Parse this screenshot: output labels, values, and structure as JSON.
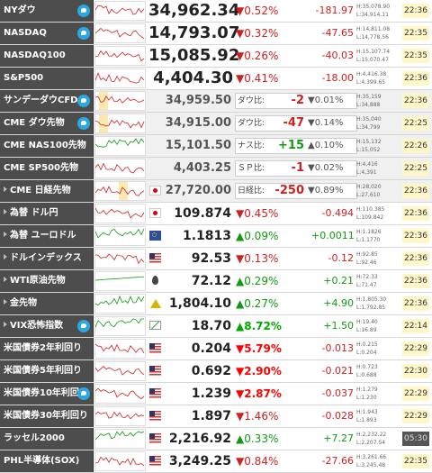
{
  "colors": {
    "down": "#d02020",
    "up": "#119911",
    "name_bg": "#4d4d4d",
    "time_bg": "#fff7c7"
  },
  "rows": [
    {
      "name": "NYダウ",
      "twitter": true,
      "flag": "",
      "price": "34,962.34",
      "pct": "▼0.52%",
      "diff": "-181.97",
      "dir": "down",
      "h": "H:35,078.90",
      "l": "L:34,914.11",
      "time": "22:36",
      "price_style": "big"
    },
    {
      "name": "NASDAQ",
      "twitter": true,
      "flag": "",
      "price": "14,793.07",
      "pct": "▼0.32%",
      "diff": "-47.65",
      "dir": "down",
      "h": "H:14,811.08",
      "l": "L:14,778.56",
      "time": "22:35",
      "price_style": "big"
    },
    {
      "name": "NASDAQ100",
      "twitter": false,
      "flag": "",
      "price": "15,085.92",
      "pct": "▼0.26%",
      "diff": "-40.03",
      "dir": "down",
      "h": "H:15,107.74",
      "l": "L:15,070.47",
      "time": "22:35",
      "price_style": "big"
    },
    {
      "name": "S&P500",
      "twitter": false,
      "flag": "",
      "price": "4,404.30",
      "pct": "▼0.41%",
      "diff": "-18.00",
      "dir": "down",
      "h": "H:4,416.38",
      "l": "L:4,399.65",
      "time": "22:36",
      "price_style": "big"
    },
    {
      "name": "サンデーダウCFD",
      "twitter": true,
      "flag": "",
      "price": "34,959.50",
      "cmp_label": "ダウ比:",
      "cmp_val": "-2",
      "cmp_pct": "▼0.01%",
      "dir": "down",
      "h": "H:35,159",
      "l": "L:34,888",
      "time": "22:36",
      "price_style": "mid"
    },
    {
      "name": "CME ダウ先物",
      "twitter": true,
      "flag": "",
      "price": "34,915.00",
      "cmp_label": "ダウ比:",
      "cmp_val": "-47",
      "cmp_pct": "▼0.14%",
      "dir": "down",
      "h": "H:35,040",
      "l": "L:34,799",
      "time": "22:25",
      "price_style": "mid"
    },
    {
      "name": "CME NAS100先物",
      "twitter": false,
      "flag": "",
      "price": "15,101.50",
      "cmp_label": "ナス比:",
      "cmp_val": "+15",
      "cmp_pct": "▲0.10%",
      "dir": "up",
      "h": "H:15,132",
      "l": "L:15,052",
      "time": "22:26",
      "price_style": "mid"
    },
    {
      "name": "CME SP500先物",
      "twitter": false,
      "flag": "",
      "price": "4,403.25",
      "cmp_label": "ＳＰ比:",
      "cmp_val": "-1",
      "cmp_pct": "▼0.02%",
      "dir": "down",
      "h": "H:4,416",
      "l": "L:4,391",
      "time": "22:25",
      "price_style": "mid"
    },
    {
      "name": "CME 日経先物",
      "twitter": false,
      "arrow": true,
      "flag": "jp",
      "price": "27,720.00",
      "cmp_label": "日経比:",
      "cmp_val": "-250",
      "cmp_pct": "▼0.89%",
      "dir": "down",
      "h": "H:28,020",
      "l": "L:27,610",
      "time": "22:36",
      "price_style": "mid"
    },
    {
      "name": "為替 ドル円",
      "twitter": false,
      "arrow": true,
      "flag": "jp",
      "price": "109.874",
      "pct": "▼0.45%",
      "diff": "-0.494",
      "dir": "down",
      "h": "H:110.385",
      "l": "L:109.842",
      "time": "22:36",
      "price_style": "norm"
    },
    {
      "name": "為替 ユーロドル",
      "twitter": false,
      "arrow": true,
      "flag": "eu",
      "price": "1.1813",
      "pct": "▲0.09%",
      "diff": "+0.0011",
      "dir": "up",
      "h": "H:1.1826",
      "l": "L:1.1770",
      "time": "22:36",
      "price_style": "norm"
    },
    {
      "name": "ドルインデックス",
      "twitter": false,
      "arrow": true,
      "flag": "us",
      "price": "92.53",
      "pct": "▼0.13%",
      "diff": "-0.12",
      "dir": "down",
      "h": "H:92.85",
      "l": "L:92.46",
      "time": "22:36",
      "price_style": "norm"
    },
    {
      "name": "WTI原油先物",
      "twitter": false,
      "arrow": true,
      "flag": "oil",
      "price": "72.12",
      "pct": "▲0.29%",
      "diff": "+0.21",
      "dir": "up",
      "h": "H:72.33",
      "l": "L:71.47",
      "time": "22:36",
      "price_style": "norm"
    },
    {
      "name": "金先物",
      "twitter": false,
      "arrow": true,
      "flag": "gold",
      "price": "1,804.10",
      "pct": "▲0.27%",
      "diff": "+4.90",
      "dir": "up",
      "h": "H:1,805.30",
      "l": "L:1,792.85",
      "time": "22:36",
      "price_style": "norm"
    },
    {
      "name": "VIX恐怖指数",
      "twitter": true,
      "arrow": true,
      "flag": "vix",
      "price": "18.70",
      "pct": "▲8.72%",
      "diff": "+1.50",
      "dir": "up",
      "pct_bright": true,
      "h": "H:19.40",
      "l": "L:16.89",
      "time": "22:14",
      "price_style": "norm"
    },
    {
      "name": "米国債券2年利回り",
      "twitter": false,
      "flag": "us",
      "price": "0.204",
      "pct": "▼5.79%",
      "diff": "-0.013",
      "dir": "down",
      "pct_bright": true,
      "h": "H:0.215",
      "l": "L:0.204",
      "time": "22:29",
      "price_style": "norm"
    },
    {
      "name": "米国債券5年利回り",
      "twitter": false,
      "flag": "us",
      "price": "0.692",
      "pct": "▼2.90%",
      "diff": "-0.021",
      "dir": "down",
      "pct_bright": true,
      "h": "H:0.723",
      "l": "L:0.688",
      "time": "22:30",
      "price_style": "norm"
    },
    {
      "name": "米国債券10年利回り",
      "twitter": true,
      "flag": "us",
      "price": "1.239",
      "pct": "▼2.87%",
      "diff": "-0.037",
      "dir": "down",
      "pct_bright": true,
      "h": "H:1.279",
      "l": "L:1.230",
      "time": "22:29",
      "price_style": "norm"
    },
    {
      "name": "米国債券30年利回り",
      "twitter": false,
      "flag": "us",
      "price": "1.897",
      "pct": "▼1.46%",
      "diff": "-0.028",
      "dir": "down",
      "h": "H:1.943",
      "l": "L:1.893",
      "time": "22:29",
      "price_style": "norm"
    },
    {
      "name": "ラッセル2000",
      "twitter": false,
      "flag": "us",
      "price": "2,216.92",
      "pct": "▲0.33%",
      "diff": "+7.27",
      "dir": "up",
      "h": "H:2,232.22",
      "l": "L:2,207.54",
      "time": "05:30",
      "time_dark": true,
      "price_style": "norm"
    },
    {
      "name": "PHL半導体(SOX)",
      "twitter": false,
      "flag": "us",
      "price": "3,249.25",
      "pct": "▼0.84%",
      "diff": "-27.66",
      "dir": "down",
      "h": "H:3,261.66",
      "l": "L:3,245.48",
      "time": "22:35",
      "price_style": "norm"
    }
  ]
}
